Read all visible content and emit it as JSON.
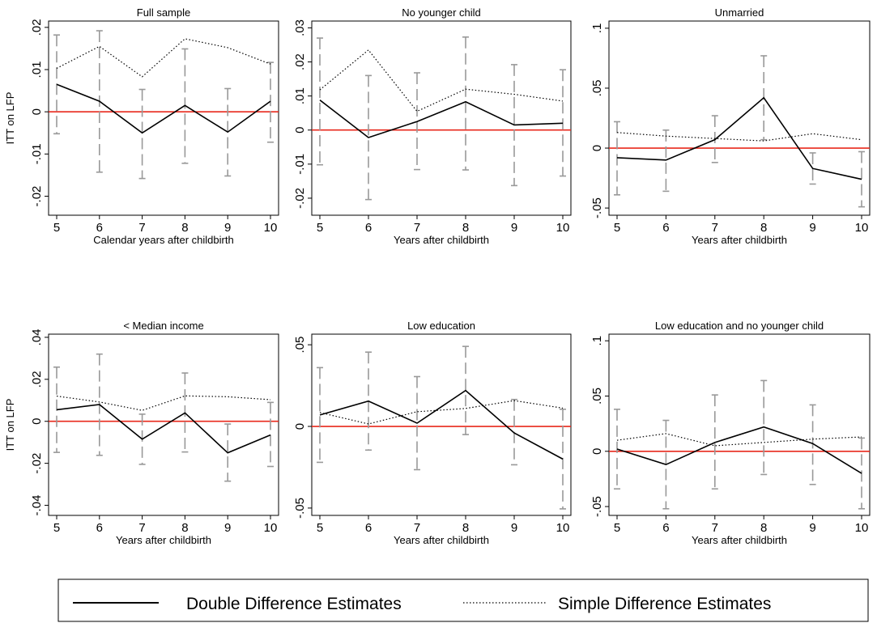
{
  "legend": {
    "double_label": "Double Difference Estimates",
    "simple_label": "Simple Difference Estimates",
    "position": "bottom"
  },
  "colors": {
    "zero_line": "#e8291c",
    "ci": "#999999",
    "double": "#000000",
    "simple": "#000000"
  },
  "chart_data": [
    {
      "type": "line",
      "title": "Full sample",
      "xlabel": "Calendar years after childbirth",
      "ylabel": "ITT on LFP",
      "x": [
        5,
        6,
        7,
        8,
        9,
        10
      ],
      "ylim": [
        -0.0245,
        0.0215
      ],
      "yticks": [
        -0.02,
        -0.01,
        0,
        0.01,
        0.02
      ],
      "ytick_labels": [
        "-.02",
        "-.01",
        "0",
        ".01",
        ".02"
      ],
      "series": [
        {
          "name": "Double Difference Estimates",
          "values": [
            0.0065,
            0.0025,
            -0.005,
            0.0015,
            -0.0048,
            0.0025
          ]
        },
        {
          "name": "Simple Difference Estimates",
          "values": [
            0.0103,
            0.0155,
            0.0083,
            0.0173,
            0.0152,
            0.0113
          ]
        }
      ],
      "ci_low": [
        -0.0052,
        -0.0143,
        -0.0158,
        -0.0122,
        -0.0152,
        -0.0072
      ],
      "ci_high": [
        0.0182,
        0.0192,
        0.0053,
        0.0149,
        0.0055,
        0.0117
      ]
    },
    {
      "type": "line",
      "title": "No younger child",
      "xlabel": "Years after childbirth",
      "ylabel": "",
      "x": [
        5,
        6,
        7,
        8,
        9,
        10
      ],
      "ylim": [
        -0.025,
        0.032
      ],
      "yticks": [
        -0.02,
        -0.01,
        0,
        0.01,
        0.02,
        0.03
      ],
      "ytick_labels": [
        "-.02",
        "-.01",
        "0",
        ".01",
        ".02",
        ".03"
      ],
      "series": [
        {
          "name": "Double Difference Estimates",
          "values": [
            0.0088,
            -0.0022,
            0.0025,
            0.0083,
            0.0015,
            0.002
          ]
        },
        {
          "name": "Simple Difference Estimates",
          "values": [
            0.0118,
            0.0235,
            0.0055,
            0.012,
            0.0105,
            0.0085
          ]
        }
      ],
      "ci_low": [
        -0.0102,
        -0.0204,
        -0.0116,
        -0.0117,
        -0.0163,
        -0.0135
      ],
      "ci_high": [
        0.027,
        0.016,
        0.0168,
        0.0273,
        0.0192,
        0.0177
      ]
    },
    {
      "type": "line",
      "title": "Unmarried",
      "xlabel": "Years after childbirth",
      "ylabel": "",
      "x": [
        5,
        6,
        7,
        8,
        9,
        10
      ],
      "ylim": [
        -0.056,
        0.106
      ],
      "yticks": [
        -0.05,
        0,
        0.05,
        0.1
      ],
      "ytick_labels": [
        "-.05",
        "0",
        ".05",
        ".1"
      ],
      "series": [
        {
          "name": "Double Difference Estimates",
          "values": [
            -0.008,
            -0.01,
            0.007,
            0.042,
            -0.017,
            -0.026
          ]
        },
        {
          "name": "Simple Difference Estimates",
          "values": [
            0.013,
            0.01,
            0.008,
            0.006,
            0.012,
            0.007
          ]
        }
      ],
      "ci_low": [
        -0.039,
        -0.036,
        -0.012,
        0.007,
        -0.03,
        -0.049
      ],
      "ci_high": [
        0.022,
        0.015,
        0.027,
        0.077,
        -0.004,
        -0.003
      ]
    },
    {
      "type": "line",
      "title": "< Median income",
      "xlabel": "Years after childbirth",
      "ylabel": "ITT on LFP",
      "x": [
        5,
        6,
        7,
        8,
        9,
        10
      ],
      "ylim": [
        -0.0448,
        0.0415
      ],
      "yticks": [
        -0.04,
        -0.02,
        0,
        0.02,
        0.04
      ],
      "ytick_labels": [
        "-.04",
        "-.02",
        "0",
        ".02",
        ".04"
      ],
      "series": [
        {
          "name": "Double Difference Estimates",
          "values": [
            0.0055,
            0.008,
            -0.0085,
            0.004,
            -0.015,
            -0.0065
          ]
        },
        {
          "name": "Simple Difference Estimates",
          "values": [
            0.012,
            0.0092,
            0.0052,
            0.0121,
            0.0117,
            0.0103
          ]
        }
      ],
      "ci_low": [
        -0.0148,
        -0.0162,
        -0.0205,
        -0.0146,
        -0.0285,
        -0.0215
      ],
      "ci_high": [
        0.0258,
        0.032,
        0.0034,
        0.023,
        -0.0013,
        0.009
      ]
    },
    {
      "type": "line",
      "title": "Low education",
      "xlabel": "Years after childbirth",
      "ylabel": "",
      "x": [
        5,
        6,
        7,
        8,
        9,
        10
      ],
      "ylim": [
        -0.0545,
        0.0565
      ],
      "yticks": [
        -0.05,
        0,
        0.05
      ],
      "ytick_labels": [
        "-.05",
        "0",
        ".05"
      ],
      "series": [
        {
          "name": "Double Difference Estimates",
          "values": [
            0.007,
            0.0155,
            0.002,
            0.022,
            -0.004,
            -0.02
          ]
        },
        {
          "name": "Simple Difference Estimates",
          "values": [
            0.0085,
            0.0015,
            0.009,
            0.011,
            0.0158,
            0.0112
          ]
        }
      ],
      "ci_low": [
        -0.022,
        -0.0145,
        -0.0265,
        -0.005,
        -0.0235,
        -0.0505
      ],
      "ci_high": [
        0.036,
        0.0455,
        0.0305,
        0.049,
        0.0165,
        0.0105
      ]
    },
    {
      "type": "line",
      "title": "Low education and no younger child",
      "xlabel": "Years after childbirth",
      "ylabel": "",
      "x": [
        5,
        6,
        7,
        8,
        9,
        10
      ],
      "ylim": [
        -0.058,
        0.106
      ],
      "yticks": [
        -0.05,
        0,
        0.05,
        0.1
      ],
      "ytick_labels": [
        "-.05",
        "0",
        ".05",
        ".1"
      ],
      "series": [
        {
          "name": "Double Difference Estimates",
          "values": [
            0.002,
            -0.012,
            0.008,
            0.022,
            0.007,
            -0.02
          ]
        },
        {
          "name": "Simple Difference Estimates",
          "values": [
            0.01,
            0.016,
            0.005,
            0.008,
            0.011,
            0.013
          ]
        }
      ],
      "ci_low": [
        -0.034,
        -0.052,
        -0.034,
        -0.021,
        -0.03,
        -0.052
      ],
      "ci_high": [
        0.038,
        0.028,
        0.051,
        0.064,
        0.042,
        0.012
      ]
    }
  ]
}
